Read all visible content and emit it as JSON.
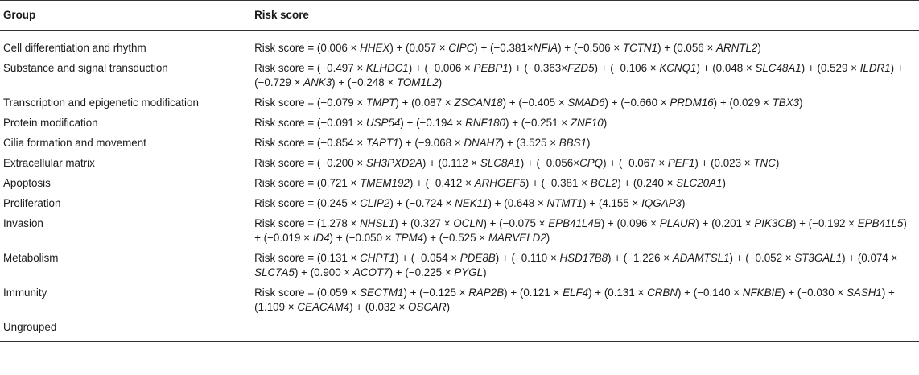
{
  "table": {
    "headers": {
      "group": "Group",
      "score": "Risk score"
    },
    "rows": [
      {
        "group": "Cell differentiation and rhythm",
        "terms": [
          {
            "t": "Risk score = (0.006 × "
          },
          {
            "g": "HHEX"
          },
          {
            "t": ") + (0.057 × "
          },
          {
            "g": "CIPC"
          },
          {
            "t": ") + (−0.381×"
          },
          {
            "g": "NFIA"
          },
          {
            "t": ") + (−0.506 × "
          },
          {
            "g": "TCTN1"
          },
          {
            "t": ") + (0.056 × "
          },
          {
            "g": "ARNTL2"
          },
          {
            "t": ")"
          }
        ]
      },
      {
        "group": "Substance and signal transduction",
        "terms": [
          {
            "t": "Risk score = (−0.497 × "
          },
          {
            "g": "KLHDC1"
          },
          {
            "t": ") + (−0.006 × "
          },
          {
            "g": "PEBP1"
          },
          {
            "t": ") + (−0.363×"
          },
          {
            "g": "FZD5"
          },
          {
            "t": ") + (−0.106 × "
          },
          {
            "g": "KCNQ1"
          },
          {
            "t": ") + (0.048 × "
          },
          {
            "g": "SLC48A1"
          },
          {
            "t": ") + (0.529 × "
          },
          {
            "g": "ILDR1"
          },
          {
            "t": ") + (−0.729 × "
          },
          {
            "g": "ANK3"
          },
          {
            "t": ") + (−0.248 × "
          },
          {
            "g": "TOM1L2"
          },
          {
            "t": ")"
          }
        ]
      },
      {
        "group": "Transcription and epigenetic modification",
        "terms": [
          {
            "t": "Risk score = (−0.079 × "
          },
          {
            "g": "TMPT"
          },
          {
            "t": ") + (0.087 × "
          },
          {
            "g": "ZSCAN18"
          },
          {
            "t": ") + (−0.405 × "
          },
          {
            "g": "SMAD6"
          },
          {
            "t": ") + (−0.660 × "
          },
          {
            "g": "PRDM16"
          },
          {
            "t": ") + (0.029 × "
          },
          {
            "g": "TBX3"
          },
          {
            "t": ")"
          }
        ]
      },
      {
        "group": "Protein modification",
        "terms": [
          {
            "t": "Risk score = (−0.091 × "
          },
          {
            "g": "USP54"
          },
          {
            "t": ") + (−0.194 × "
          },
          {
            "g": "RNF180"
          },
          {
            "t": ") + (−0.251 × "
          },
          {
            "g": "ZNF10"
          },
          {
            "t": ")"
          }
        ]
      },
      {
        "group": "Cilia formation and movement",
        "terms": [
          {
            "t": "Risk score = (−0.854 × "
          },
          {
            "g": "TAPT1"
          },
          {
            "t": ") + (−9.068 × "
          },
          {
            "g": "DNAH7"
          },
          {
            "t": ") + (3.525 × "
          },
          {
            "g": "BBS1"
          },
          {
            "t": ")"
          }
        ]
      },
      {
        "group": "Extracellular matrix",
        "terms": [
          {
            "t": "Risk score = (−0.200 × "
          },
          {
            "g": "SH3PXD2A"
          },
          {
            "t": ") + (0.112 × "
          },
          {
            "g": "SLC8A1"
          },
          {
            "t": ") + (−0.056×"
          },
          {
            "g": "CPQ"
          },
          {
            "t": ") + (−0.067 × "
          },
          {
            "g": "PEF1"
          },
          {
            "t": ") + (0.023 × "
          },
          {
            "g": "TNC"
          },
          {
            "t": ")"
          }
        ]
      },
      {
        "group": "Apoptosis",
        "terms": [
          {
            "t": "Risk score = (0.721 × "
          },
          {
            "g": "TMEM192"
          },
          {
            "t": ") + (−0.412 × "
          },
          {
            "g": "ARHGEF5"
          },
          {
            "t": ") + (−0.381 × "
          },
          {
            "g": "BCL2"
          },
          {
            "t": ") + (0.240 × "
          },
          {
            "g": "SLC20A1"
          },
          {
            "t": ")"
          }
        ]
      },
      {
        "group": "Proliferation",
        "terms": [
          {
            "t": "Risk score = (0.245 × "
          },
          {
            "g": "CLIP2"
          },
          {
            "t": ") + (−0.724 × "
          },
          {
            "g": "NEK11"
          },
          {
            "t": ") + (0.648 × "
          },
          {
            "g": "NTMT1"
          },
          {
            "t": ") + (4.155 × "
          },
          {
            "g": "IQGAP3"
          },
          {
            "t": ")"
          }
        ]
      },
      {
        "group": "Invasion",
        "terms": [
          {
            "t": "Risk score = (1.278 × "
          },
          {
            "g": "NHSL1"
          },
          {
            "t": ") + (0.327 × "
          },
          {
            "g": "OCLN"
          },
          {
            "t": ") + (−0.075 × "
          },
          {
            "g": "EPB41L4B"
          },
          {
            "t": ") + (0.096 × "
          },
          {
            "g": "PLAUR"
          },
          {
            "t": ") + (0.201 × "
          },
          {
            "g": "PIK3CB"
          },
          {
            "t": ") + (−0.192 × "
          },
          {
            "g": "EPB41L5"
          },
          {
            "t": ") + (−0.019 × "
          },
          {
            "g": "ID4"
          },
          {
            "t": ") + (−0.050 × "
          },
          {
            "g": "TPM4"
          },
          {
            "t": ") + (−0.525 × "
          },
          {
            "g": "MARVELD2"
          },
          {
            "t": ")"
          }
        ]
      },
      {
        "group": "Metabolism",
        "terms": [
          {
            "t": "Risk score = (0.131 × "
          },
          {
            "g": "CHPT1"
          },
          {
            "t": ") + (−0.054 × "
          },
          {
            "g": "PDE8B"
          },
          {
            "t": ") + (−0.110 × "
          },
          {
            "g": "HSD17B8"
          },
          {
            "t": ") + (−1.226 × "
          },
          {
            "g": "ADAMTSL1"
          },
          {
            "t": ") + (−0.052 × "
          },
          {
            "g": "ST3GAL1"
          },
          {
            "t": ") + (0.074 × "
          },
          {
            "g": "SLC7A5"
          },
          {
            "t": ") + (0.900 × "
          },
          {
            "g": "ACOT7"
          },
          {
            "t": ") + (−0.225 × "
          },
          {
            "g": "PYGL"
          },
          {
            "t": ")"
          }
        ]
      },
      {
        "group": "Immunity",
        "terms": [
          {
            "t": "Risk score = (0.059 × "
          },
          {
            "g": "SECTM1"
          },
          {
            "t": ") + (−0.125 × "
          },
          {
            "g": "RAP2B"
          },
          {
            "t": ") + (0.121 × "
          },
          {
            "g": "ELF4"
          },
          {
            "t": ") + (0.131 × "
          },
          {
            "g": "CRBN"
          },
          {
            "t": ") + (−0.140 × "
          },
          {
            "g": "NFKBIE"
          },
          {
            "t": ") + (−0.030 × "
          },
          {
            "g": "SASH1"
          },
          {
            "t": ") + (1.109 × "
          },
          {
            "g": "CEACAM4"
          },
          {
            "t": ") + (0.032 × "
          },
          {
            "g": "OSCAR"
          },
          {
            "t": ")"
          }
        ]
      },
      {
        "group": "Ungrouped",
        "terms": [
          {
            "t": "–"
          }
        ]
      }
    ]
  }
}
